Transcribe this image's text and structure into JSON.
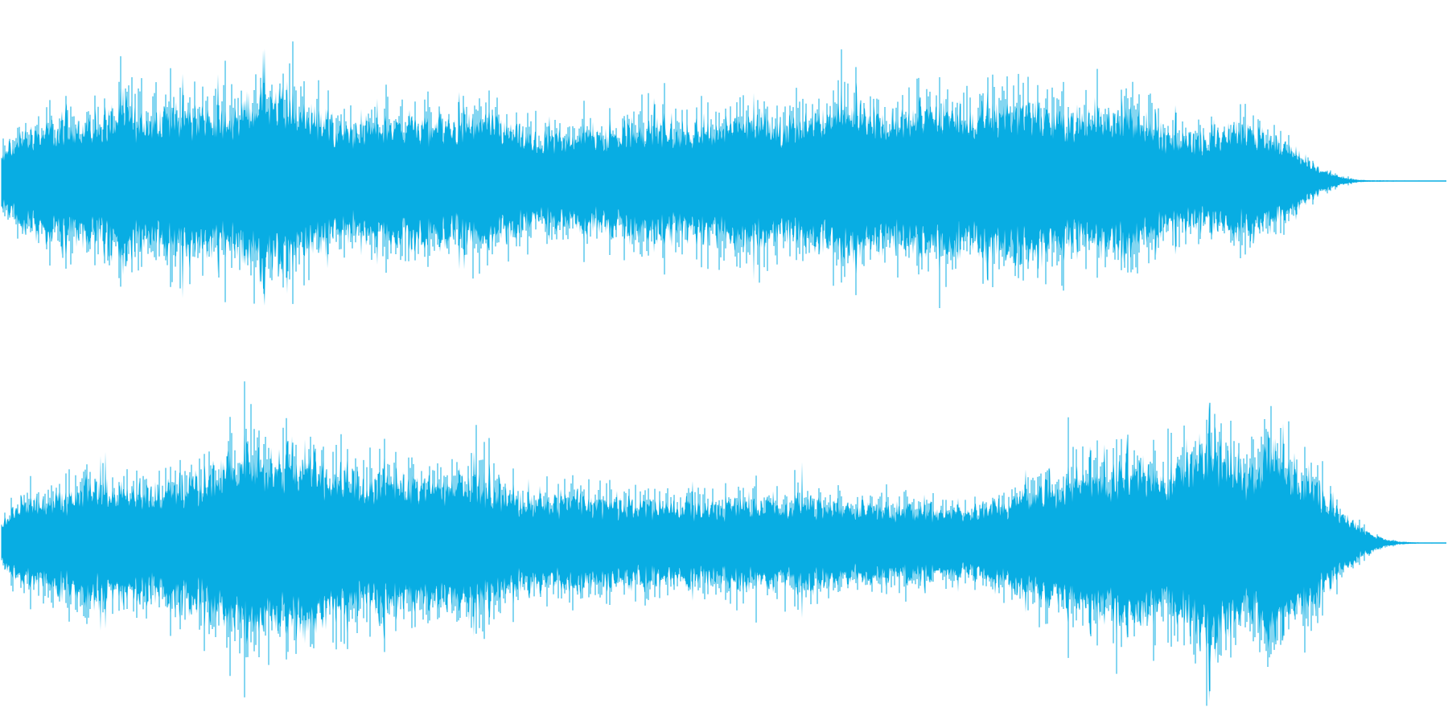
{
  "waveform": {
    "color": "#08ADE3",
    "channels": [
      {
        "name": "channel-1",
        "envelope": [
          0.22,
          0.35,
          0.42,
          0.46,
          0.47,
          0.5,
          0.52,
          0.56,
          0.62,
          0.58,
          0.55,
          0.57,
          0.62,
          0.6,
          0.58,
          0.56,
          0.63,
          0.7,
          0.76,
          0.72,
          0.66,
          0.62,
          0.55,
          0.48,
          0.46,
          0.47,
          0.5,
          0.52,
          0.54,
          0.52,
          0.5,
          0.49,
          0.51,
          0.52,
          0.5,
          0.45,
          0.38,
          0.36,
          0.37,
          0.38,
          0.4,
          0.4,
          0.42,
          0.46,
          0.48,
          0.47,
          0.45,
          0.43,
          0.47,
          0.5,
          0.53,
          0.56,
          0.55,
          0.52,
          0.5,
          0.52,
          0.55,
          0.6,
          0.66,
          0.62,
          0.56,
          0.52,
          0.55,
          0.6,
          0.62,
          0.6,
          0.58,
          0.56,
          0.62,
          0.66,
          0.68,
          0.64,
          0.6,
          0.56,
          0.55,
          0.56,
          0.58,
          0.6,
          0.58,
          0.48,
          0.4,
          0.38,
          0.36,
          0.4,
          0.42,
          0.44,
          0.42,
          0.4,
          0.3,
          0.22,
          0.14,
          0.08,
          0.03,
          0.01,
          0.005,
          0.004,
          0.003,
          0.003,
          0.002,
          0.002
        ]
      },
      {
        "name": "channel-2",
        "envelope": [
          0.2,
          0.3,
          0.38,
          0.4,
          0.42,
          0.46,
          0.48,
          0.5,
          0.48,
          0.44,
          0.46,
          0.48,
          0.52,
          0.5,
          0.56,
          0.64,
          0.76,
          0.82,
          0.72,
          0.7,
          0.76,
          0.78,
          0.66,
          0.62,
          0.58,
          0.56,
          0.56,
          0.58,
          0.56,
          0.54,
          0.56,
          0.55,
          0.54,
          0.52,
          0.5,
          0.4,
          0.36,
          0.35,
          0.38,
          0.4,
          0.38,
          0.37,
          0.36,
          0.35,
          0.36,
          0.34,
          0.34,
          0.35,
          0.33,
          0.33,
          0.34,
          0.36,
          0.34,
          0.34,
          0.36,
          0.44,
          0.34,
          0.33,
          0.34,
          0.32,
          0.33,
          0.32,
          0.32,
          0.3,
          0.3,
          0.3,
          0.29,
          0.3,
          0.32,
          0.35,
          0.42,
          0.48,
          0.52,
          0.55,
          0.56,
          0.58,
          0.6,
          0.64,
          0.66,
          0.58,
          0.62,
          0.68,
          0.8,
          0.88,
          0.8,
          0.62,
          0.68,
          0.86,
          0.7,
          0.6,
          0.52,
          0.38,
          0.24,
          0.14,
          0.07,
          0.03,
          0.01,
          0.004,
          0.003,
          0.002
        ]
      }
    ]
  }
}
